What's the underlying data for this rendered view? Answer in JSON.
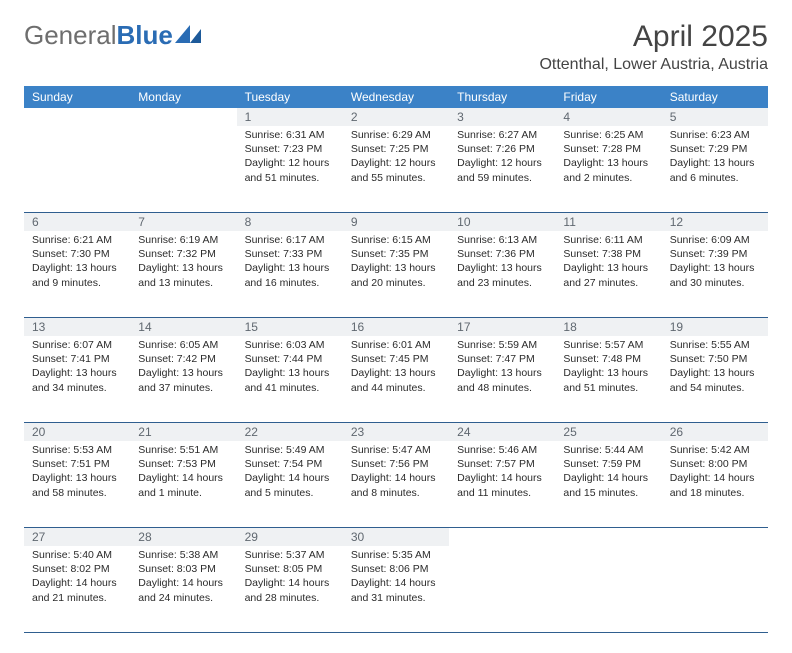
{
  "logo": {
    "gray": "General",
    "blue": "Blue"
  },
  "title": "April 2025",
  "location": "Ottenthal, Lower Austria, Austria",
  "colors": {
    "header_bg": "#3b82c7",
    "header_text": "#ffffff",
    "daynum_bg": "#eff1f3",
    "daynum_text": "#606870",
    "body_text": "#2b2b2b",
    "week_divider": "#2f5e8f",
    "page_bg": "#ffffff",
    "logo_gray": "#6e6e6e",
    "logo_blue": "#2a6cb4"
  },
  "day_names": [
    "Sunday",
    "Monday",
    "Tuesday",
    "Wednesday",
    "Thursday",
    "Friday",
    "Saturday"
  ],
  "weeks": [
    [
      null,
      null,
      {
        "n": "1",
        "sr": "Sunrise: 6:31 AM",
        "ss": "Sunset: 7:23 PM",
        "dl": "Daylight: 12 hours and 51 minutes."
      },
      {
        "n": "2",
        "sr": "Sunrise: 6:29 AM",
        "ss": "Sunset: 7:25 PM",
        "dl": "Daylight: 12 hours and 55 minutes."
      },
      {
        "n": "3",
        "sr": "Sunrise: 6:27 AM",
        "ss": "Sunset: 7:26 PM",
        "dl": "Daylight: 12 hours and 59 minutes."
      },
      {
        "n": "4",
        "sr": "Sunrise: 6:25 AM",
        "ss": "Sunset: 7:28 PM",
        "dl": "Daylight: 13 hours and 2 minutes."
      },
      {
        "n": "5",
        "sr": "Sunrise: 6:23 AM",
        "ss": "Sunset: 7:29 PM",
        "dl": "Daylight: 13 hours and 6 minutes."
      }
    ],
    [
      {
        "n": "6",
        "sr": "Sunrise: 6:21 AM",
        "ss": "Sunset: 7:30 PM",
        "dl": "Daylight: 13 hours and 9 minutes."
      },
      {
        "n": "7",
        "sr": "Sunrise: 6:19 AM",
        "ss": "Sunset: 7:32 PM",
        "dl": "Daylight: 13 hours and 13 minutes."
      },
      {
        "n": "8",
        "sr": "Sunrise: 6:17 AM",
        "ss": "Sunset: 7:33 PM",
        "dl": "Daylight: 13 hours and 16 minutes."
      },
      {
        "n": "9",
        "sr": "Sunrise: 6:15 AM",
        "ss": "Sunset: 7:35 PM",
        "dl": "Daylight: 13 hours and 20 minutes."
      },
      {
        "n": "10",
        "sr": "Sunrise: 6:13 AM",
        "ss": "Sunset: 7:36 PM",
        "dl": "Daylight: 13 hours and 23 minutes."
      },
      {
        "n": "11",
        "sr": "Sunrise: 6:11 AM",
        "ss": "Sunset: 7:38 PM",
        "dl": "Daylight: 13 hours and 27 minutes."
      },
      {
        "n": "12",
        "sr": "Sunrise: 6:09 AM",
        "ss": "Sunset: 7:39 PM",
        "dl": "Daylight: 13 hours and 30 minutes."
      }
    ],
    [
      {
        "n": "13",
        "sr": "Sunrise: 6:07 AM",
        "ss": "Sunset: 7:41 PM",
        "dl": "Daylight: 13 hours and 34 minutes."
      },
      {
        "n": "14",
        "sr": "Sunrise: 6:05 AM",
        "ss": "Sunset: 7:42 PM",
        "dl": "Daylight: 13 hours and 37 minutes."
      },
      {
        "n": "15",
        "sr": "Sunrise: 6:03 AM",
        "ss": "Sunset: 7:44 PM",
        "dl": "Daylight: 13 hours and 41 minutes."
      },
      {
        "n": "16",
        "sr": "Sunrise: 6:01 AM",
        "ss": "Sunset: 7:45 PM",
        "dl": "Daylight: 13 hours and 44 minutes."
      },
      {
        "n": "17",
        "sr": "Sunrise: 5:59 AM",
        "ss": "Sunset: 7:47 PM",
        "dl": "Daylight: 13 hours and 48 minutes."
      },
      {
        "n": "18",
        "sr": "Sunrise: 5:57 AM",
        "ss": "Sunset: 7:48 PM",
        "dl": "Daylight: 13 hours and 51 minutes."
      },
      {
        "n": "19",
        "sr": "Sunrise: 5:55 AM",
        "ss": "Sunset: 7:50 PM",
        "dl": "Daylight: 13 hours and 54 minutes."
      }
    ],
    [
      {
        "n": "20",
        "sr": "Sunrise: 5:53 AM",
        "ss": "Sunset: 7:51 PM",
        "dl": "Daylight: 13 hours and 58 minutes."
      },
      {
        "n": "21",
        "sr": "Sunrise: 5:51 AM",
        "ss": "Sunset: 7:53 PM",
        "dl": "Daylight: 14 hours and 1 minute."
      },
      {
        "n": "22",
        "sr": "Sunrise: 5:49 AM",
        "ss": "Sunset: 7:54 PM",
        "dl": "Daylight: 14 hours and 5 minutes."
      },
      {
        "n": "23",
        "sr": "Sunrise: 5:47 AM",
        "ss": "Sunset: 7:56 PM",
        "dl": "Daylight: 14 hours and 8 minutes."
      },
      {
        "n": "24",
        "sr": "Sunrise: 5:46 AM",
        "ss": "Sunset: 7:57 PM",
        "dl": "Daylight: 14 hours and 11 minutes."
      },
      {
        "n": "25",
        "sr": "Sunrise: 5:44 AM",
        "ss": "Sunset: 7:59 PM",
        "dl": "Daylight: 14 hours and 15 minutes."
      },
      {
        "n": "26",
        "sr": "Sunrise: 5:42 AM",
        "ss": "Sunset: 8:00 PM",
        "dl": "Daylight: 14 hours and 18 minutes."
      }
    ],
    [
      {
        "n": "27",
        "sr": "Sunrise: 5:40 AM",
        "ss": "Sunset: 8:02 PM",
        "dl": "Daylight: 14 hours and 21 minutes."
      },
      {
        "n": "28",
        "sr": "Sunrise: 5:38 AM",
        "ss": "Sunset: 8:03 PM",
        "dl": "Daylight: 14 hours and 24 minutes."
      },
      {
        "n": "29",
        "sr": "Sunrise: 5:37 AM",
        "ss": "Sunset: 8:05 PM",
        "dl": "Daylight: 14 hours and 28 minutes."
      },
      {
        "n": "30",
        "sr": "Sunrise: 5:35 AM",
        "ss": "Sunset: 8:06 PM",
        "dl": "Daylight: 14 hours and 31 minutes."
      },
      null,
      null,
      null
    ]
  ]
}
